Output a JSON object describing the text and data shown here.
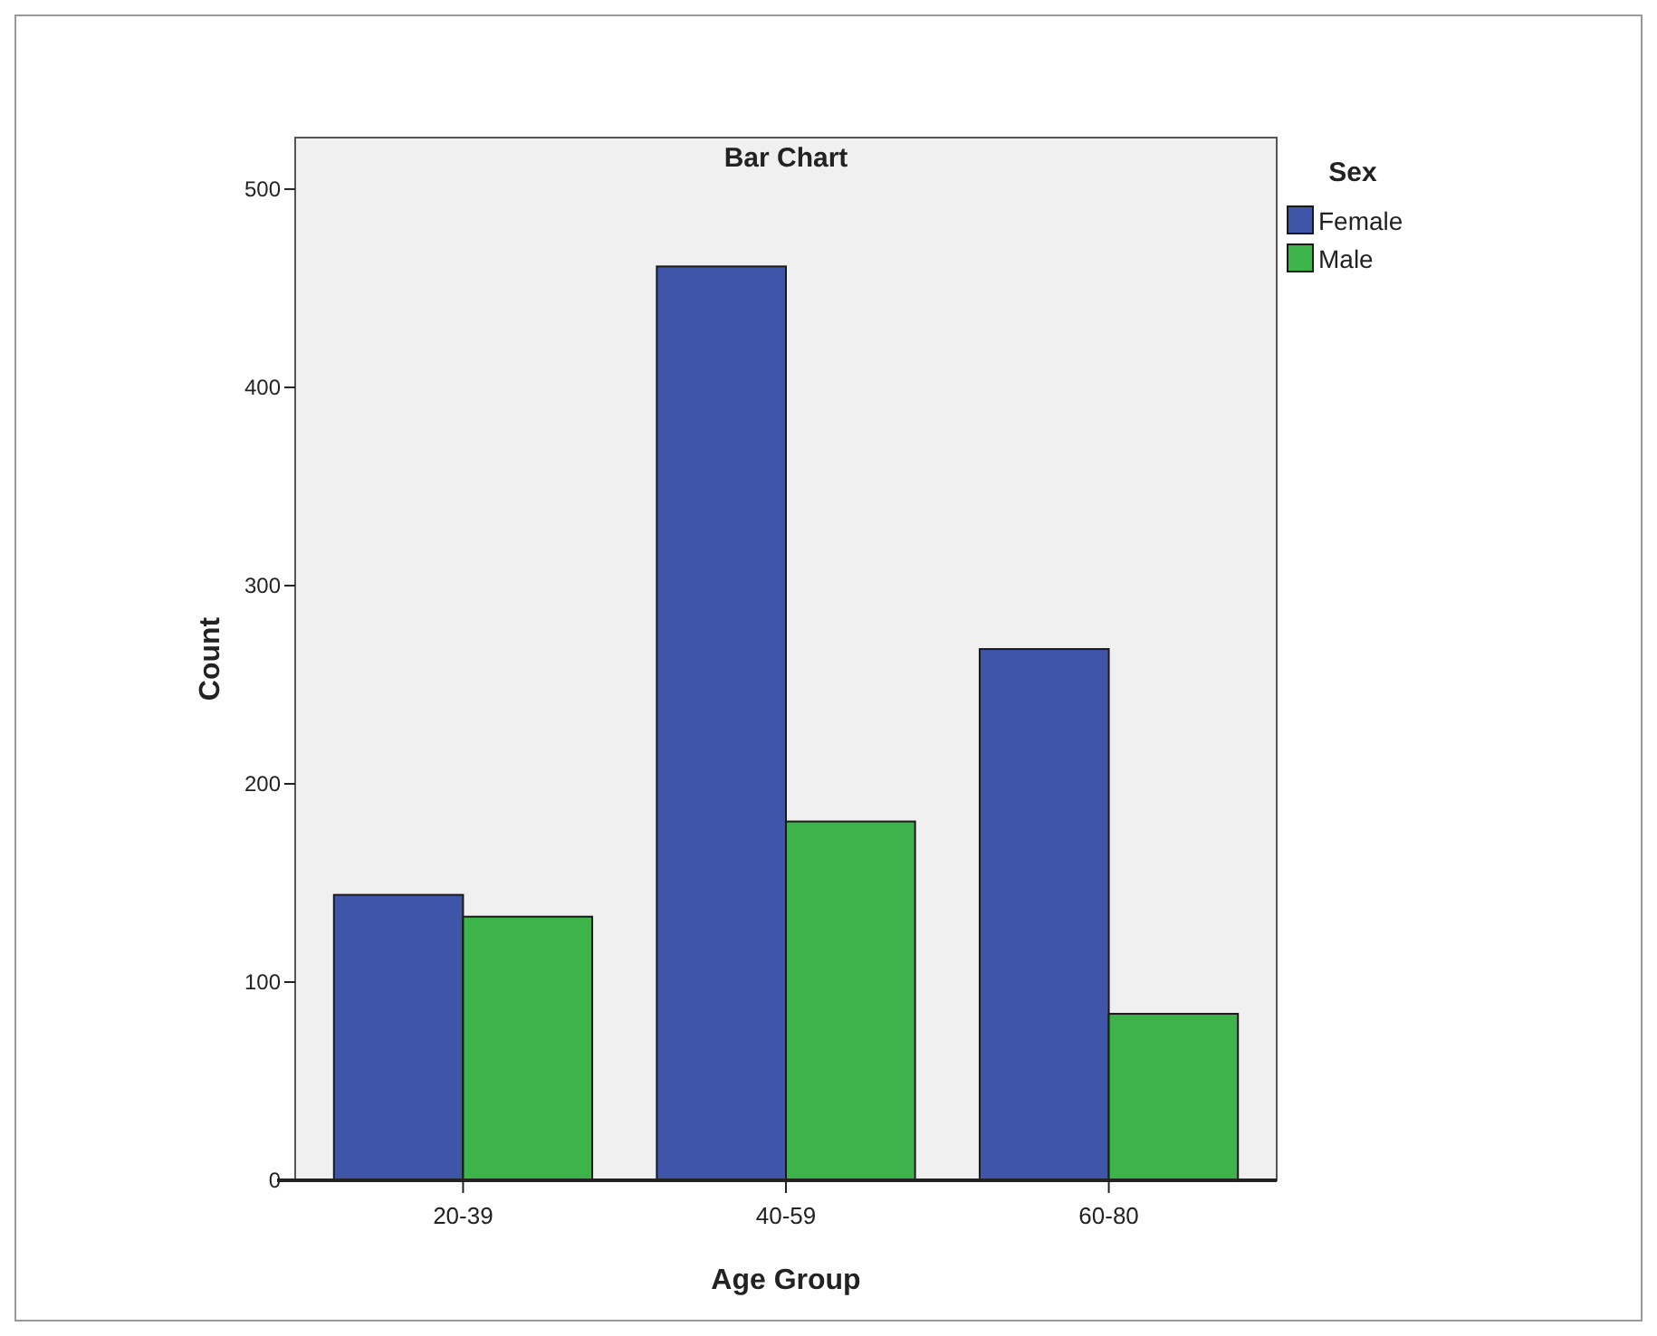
{
  "chart_data": {
    "type": "bar",
    "title": "Bar Chart",
    "xlabel": "Age Group",
    "ylabel": "Count",
    "legend_title": "Sex",
    "categories": [
      "20-39",
      "40-59",
      "60-80"
    ],
    "series": [
      {
        "name": "Female",
        "color": "#3f56a8",
        "values": [
          144,
          461,
          268
        ]
      },
      {
        "name": "Male",
        "color": "#3cb44a",
        "values": [
          133,
          181,
          84
        ]
      }
    ],
    "ylim": [
      0,
      526
    ],
    "yticks": [
      0,
      100,
      200,
      300,
      400,
      500
    ],
    "grid": false,
    "legend": "top right"
  }
}
